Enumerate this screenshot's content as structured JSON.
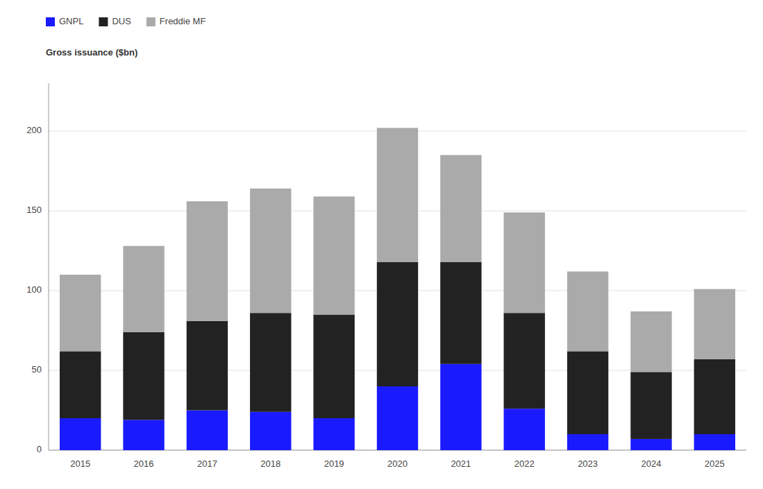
{
  "chart_data": {
    "type": "bar",
    "stacked": true,
    "y_label": "Gross issuance ($bn)",
    "categories": [
      "2015",
      "2016",
      "2017",
      "2018",
      "2019",
      "2020",
      "2021",
      "2022",
      "2023",
      "2024",
      "2025"
    ],
    "series": [
      {
        "name": "GNPL",
        "color": "#1a1aff",
        "values": [
          20,
          19,
          25,
          24,
          20,
          40,
          54,
          26,
          10,
          7,
          10
        ]
      },
      {
        "name": "DUS",
        "color": "#222222",
        "values": [
          42,
          55,
          56,
          62,
          65,
          78,
          64,
          60,
          52,
          42,
          47
        ]
      },
      {
        "name": "Freddie MF",
        "color": "#aaaaaa",
        "values": [
          48,
          54,
          75,
          78,
          74,
          84,
          67,
          63,
          50,
          38,
          44
        ]
      }
    ],
    "ylim": [
      0,
      230
    ],
    "yticks": [
      0,
      50,
      100,
      150,
      200
    ],
    "grid": true,
    "legend": "top-left"
  }
}
